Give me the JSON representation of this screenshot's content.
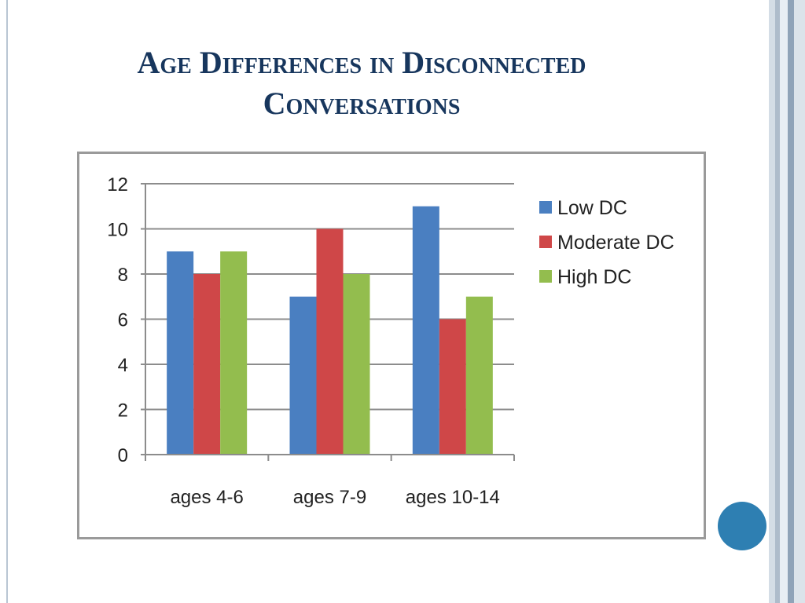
{
  "slide": {
    "title_line1": "Age Differences in Disconnected",
    "title_line2": "Conversations"
  },
  "colors": {
    "title": "#17365d",
    "low": "#4a7fc1",
    "moderate": "#cf4748",
    "high": "#93bd4e",
    "circle": "#2e7fb2",
    "stripes": [
      "#d4dde6",
      "#aebccb",
      "#e8eef4",
      "#8fa3b8",
      "#dbe3ea"
    ]
  },
  "chart_data": {
    "type": "bar",
    "categories": [
      "ages 4-6",
      "ages 7-9",
      "ages 10-14"
    ],
    "series": [
      {
        "name": "Low DC",
        "values": [
          9,
          7,
          11
        ],
        "color": "#4a7fc1"
      },
      {
        "name": "Moderate DC",
        "values": [
          8,
          10,
          6
        ],
        "color": "#cf4748"
      },
      {
        "name": "High DC",
        "values": [
          9,
          8,
          7
        ],
        "color": "#93bd4e"
      }
    ],
    "yticks": [
      "0",
      "2",
      "4",
      "6",
      "8",
      "10",
      "12"
    ],
    "ylim": [
      0,
      12
    ],
    "grid": true,
    "legend_position": "right",
    "title": "",
    "xlabel": "",
    "ylabel": ""
  }
}
